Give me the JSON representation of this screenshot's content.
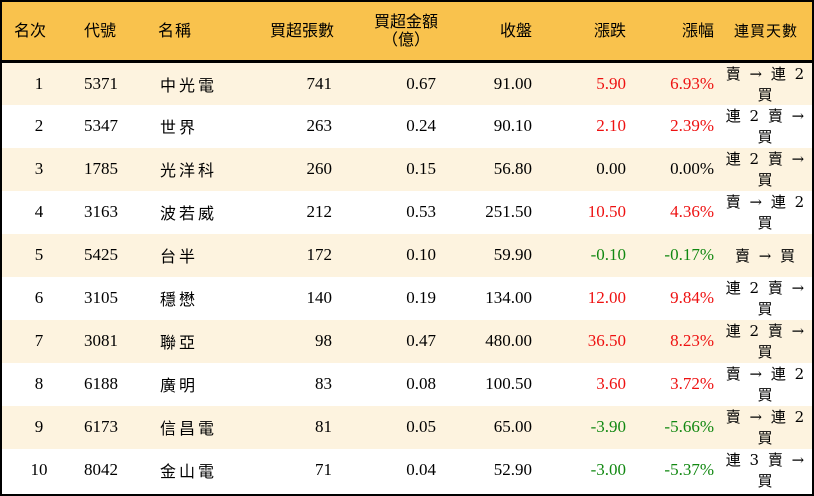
{
  "table": {
    "headers": {
      "rank": "名次",
      "code": "代號",
      "name": "名稱",
      "net_buy_lots": "買超張數",
      "net_buy_amount_line1": "買超金額",
      "net_buy_amount_line2": "（億）",
      "close": "收盤",
      "change": "漲跌",
      "change_pct": "漲幅",
      "consecutive_days": "連買天數"
    },
    "colors": {
      "header_bg": "#F9C24D",
      "row_odd_bg": "#FDF3DF",
      "row_even_bg": "#FFFFFF",
      "up": "#EE1111",
      "down": "#118811",
      "flat": "#000000",
      "border": "#000000"
    },
    "rows": [
      {
        "rank": "1",
        "code": "5371",
        "name": "中光電",
        "lots": "741",
        "amount": "0.67",
        "close": "91.00",
        "change": "5.90",
        "pct": "6.93%",
        "trend": "up",
        "streak": "賣 → 連 2 買"
      },
      {
        "rank": "2",
        "code": "5347",
        "name": "世界",
        "lots": "263",
        "amount": "0.24",
        "close": "90.10",
        "change": "2.10",
        "pct": "2.39%",
        "trend": "up",
        "streak": "連 2 賣 → 買"
      },
      {
        "rank": "3",
        "code": "1785",
        "name": "光洋科",
        "lots": "260",
        "amount": "0.15",
        "close": "56.80",
        "change": "0.00",
        "pct": "0.00%",
        "trend": "flat",
        "streak": "連 2 賣 → 買"
      },
      {
        "rank": "4",
        "code": "3163",
        "name": "波若威",
        "lots": "212",
        "amount": "0.53",
        "close": "251.50",
        "change": "10.50",
        "pct": "4.36%",
        "trend": "up",
        "streak": "賣 → 連 2 買"
      },
      {
        "rank": "5",
        "code": "5425",
        "name": "台半",
        "lots": "172",
        "amount": "0.10",
        "close": "59.90",
        "change": "-0.10",
        "pct": "-0.17%",
        "trend": "down",
        "streak": "賣 → 買"
      },
      {
        "rank": "6",
        "code": "3105",
        "name": "穩懋",
        "lots": "140",
        "amount": "0.19",
        "close": "134.00",
        "change": "12.00",
        "pct": "9.84%",
        "trend": "up",
        "streak": "連 2 賣 → 買"
      },
      {
        "rank": "7",
        "code": "3081",
        "name": "聯亞",
        "lots": "98",
        "amount": "0.47",
        "close": "480.00",
        "change": "36.50",
        "pct": "8.23%",
        "trend": "up",
        "streak": "連 2 賣 → 買"
      },
      {
        "rank": "8",
        "code": "6188",
        "name": "廣明",
        "lots": "83",
        "amount": "0.08",
        "close": "100.50",
        "change": "3.60",
        "pct": "3.72%",
        "trend": "up",
        "streak": "賣 → 連 2 買"
      },
      {
        "rank": "9",
        "code": "6173",
        "name": "信昌電",
        "lots": "81",
        "amount": "0.05",
        "close": "65.00",
        "change": "-3.90",
        "pct": "-5.66%",
        "trend": "down",
        "streak": "賣 → 連 2 買"
      },
      {
        "rank": "10",
        "code": "8042",
        "name": "金山電",
        "lots": "71",
        "amount": "0.04",
        "close": "52.90",
        "change": "-3.00",
        "pct": "-5.37%",
        "trend": "down",
        "streak": "連 3 賣 → 買"
      }
    ]
  }
}
